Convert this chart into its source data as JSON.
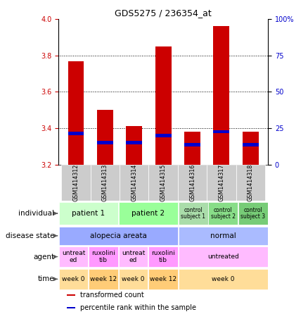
{
  "title": "GDS5275 / 236354_at",
  "samples": [
    "GSM1414312",
    "GSM1414313",
    "GSM1414314",
    "GSM1414315",
    "GSM1414316",
    "GSM1414317",
    "GSM1414318"
  ],
  "red_values": [
    3.77,
    3.5,
    3.41,
    3.85,
    3.38,
    3.96,
    3.38
  ],
  "blue_values": [
    3.37,
    3.32,
    3.32,
    3.36,
    3.31,
    3.38,
    3.31
  ],
  "ylim_left": [
    3.2,
    4.0
  ],
  "ylim_right": [
    0,
    100
  ],
  "yticks_left": [
    3.2,
    3.4,
    3.6,
    3.8,
    4.0
  ],
  "yticks_right": [
    0,
    25,
    50,
    75,
    100
  ],
  "ytick_labels_right": [
    "0",
    "25",
    "50",
    "75",
    "100%"
  ],
  "bar_width": 0.55,
  "bar_color": "#cc0000",
  "blue_color": "#0000cc",
  "rows": [
    {
      "label": "individual",
      "cells": [
        {
          "text": "patient 1",
          "span": 2,
          "color": "#ccffcc",
          "fontsize": 7.5
        },
        {
          "text": "patient 2",
          "span": 2,
          "color": "#99ff99",
          "fontsize": 7.5
        },
        {
          "text": "control\nsubject 1",
          "span": 1,
          "color": "#aaddaa",
          "fontsize": 5.5
        },
        {
          "text": "control\nsubject 2",
          "span": 1,
          "color": "#88dd88",
          "fontsize": 5.5
        },
        {
          "text": "control\nsubject 3",
          "span": 1,
          "color": "#77cc77",
          "fontsize": 5.5
        }
      ]
    },
    {
      "label": "disease state",
      "cells": [
        {
          "text": "alopecia areata",
          "span": 4,
          "color": "#99aaff",
          "fontsize": 7.5
        },
        {
          "text": "normal",
          "span": 3,
          "color": "#aabbff",
          "fontsize": 7.5
        }
      ]
    },
    {
      "label": "agent",
      "cells": [
        {
          "text": "untreat\ned",
          "span": 1,
          "color": "#ffbbff",
          "fontsize": 6.5
        },
        {
          "text": "ruxolini\ntib",
          "span": 1,
          "color": "#ff99ff",
          "fontsize": 6.5
        },
        {
          "text": "untreat\ned",
          "span": 1,
          "color": "#ffbbff",
          "fontsize": 6.5
        },
        {
          "text": "ruxolini\ntib",
          "span": 1,
          "color": "#ff99ff",
          "fontsize": 6.5
        },
        {
          "text": "untreated",
          "span": 3,
          "color": "#ffbbff",
          "fontsize": 6.5
        }
      ]
    },
    {
      "label": "time",
      "cells": [
        {
          "text": "week 0",
          "span": 1,
          "color": "#ffdd99",
          "fontsize": 6.5
        },
        {
          "text": "week 12",
          "span": 1,
          "color": "#ffcc77",
          "fontsize": 6.5
        },
        {
          "text": "week 0",
          "span": 1,
          "color": "#ffdd99",
          "fontsize": 6.5
        },
        {
          "text": "week 12",
          "span": 1,
          "color": "#ffcc77",
          "fontsize": 6.5
        },
        {
          "text": "week 0",
          "span": 3,
          "color": "#ffdd99",
          "fontsize": 6.5
        }
      ]
    }
  ],
  "legend": [
    {
      "color": "#cc0000",
      "label": "transformed count"
    },
    {
      "color": "#0000cc",
      "label": "percentile rank within the sample"
    }
  ]
}
